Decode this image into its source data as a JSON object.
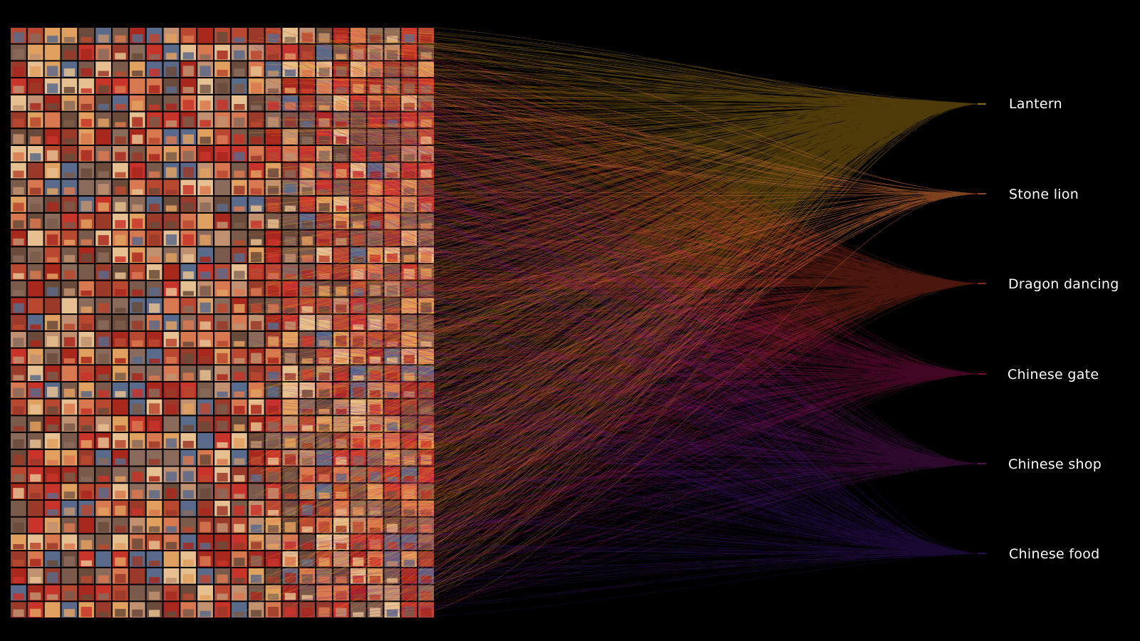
{
  "categories": [
    {
      "label": "Lantern",
      "color": "#f5b51e",
      "share": 0.4
    },
    {
      "label": "Stone lion",
      "color": "#e8783a",
      "share": 0.04
    },
    {
      "label": "Dragon dancing",
      "color": "#e8442a",
      "share": 0.22
    },
    {
      "label": "Chinese gate",
      "color": "#c8126a",
      "share": 0.12
    },
    {
      "label": "Chinese shop",
      "color": "#8a1a8c",
      "share": 0.12
    },
    {
      "label": "Chinese food",
      "color": "#4a1a9a",
      "share": 0.1
    }
  ],
  "image_grid": {
    "rows": 35,
    "cols": 25,
    "palette": [
      "#c8342a",
      "#a8281e",
      "#e0a060",
      "#7a5a4a",
      "#d87850",
      "#8a6a5a",
      "#b84830",
      "#5a6a8a",
      "#e6c090",
      "#9a3a2a",
      "#c09070",
      "#6a4a3a"
    ]
  }
}
